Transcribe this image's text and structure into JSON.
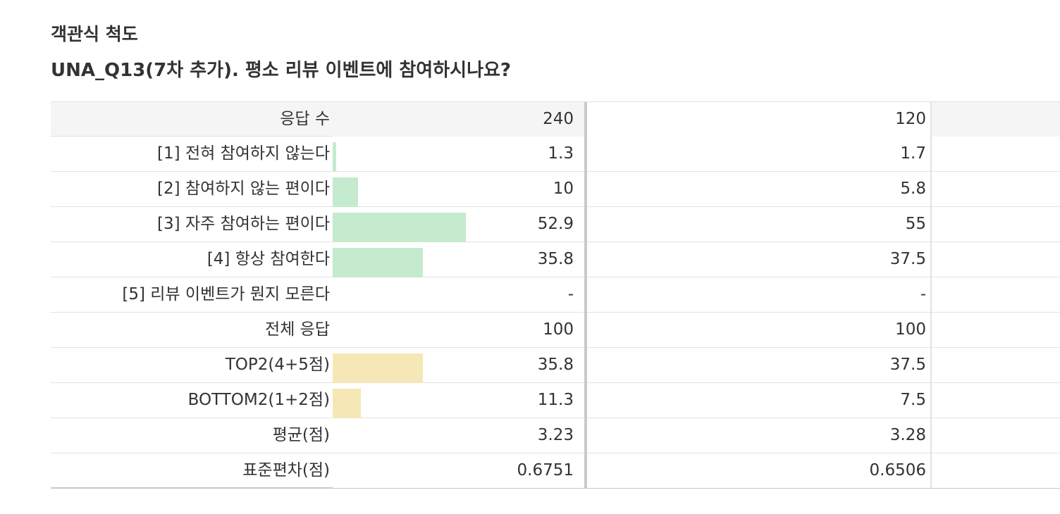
{
  "section_title": "객관식 척도",
  "question": "UNA_Q13(7차 추가). 평소 리뷰 이벤트에 참여하시나요?",
  "header": {
    "label": "응답 수",
    "v1": "240",
    "v2": "120"
  },
  "rows": [
    {
      "label": "[1] 전혀 참여하지 않는다",
      "v1": "1.3",
      "v2": "1.7",
      "bar": 1.3,
      "color": "green"
    },
    {
      "label": "[2] 참여하지 않는 편이다",
      "v1": "10",
      "v2": "5.8",
      "bar": 10,
      "color": "green"
    },
    {
      "label": "[3] 자주 참여하는 편이다",
      "v1": "52.9",
      "v2": "55",
      "bar": 52.9,
      "color": "green"
    },
    {
      "label": "[4] 항상 참여한다",
      "v1": "35.8",
      "v2": "37.5",
      "bar": 35.8,
      "color": "green"
    },
    {
      "label": "[5] 리뷰 이벤트가 뭔지 모른다",
      "v1": "-",
      "v2": "-",
      "bar": 0,
      "color": "green"
    },
    {
      "label": "전체 응답",
      "v1": "100",
      "v2": "100",
      "bar": 0,
      "color": "none"
    },
    {
      "label": "TOP2(4+5점)",
      "v1": "35.8",
      "v2": "37.5",
      "bar": 35.8,
      "color": "yellow"
    },
    {
      "label": "BOTTOM2(1+2점)",
      "v1": "11.3",
      "v2": "7.5",
      "bar": 11.3,
      "color": "yellow"
    },
    {
      "label": "평균(점)",
      "v1": "3.23",
      "v2": "3.28",
      "bar": 0,
      "color": "none"
    },
    {
      "label": "표준편차(점)",
      "v1": "0.6751",
      "v2": "0.6506",
      "bar": 0,
      "color": "none"
    }
  ],
  "colors": {
    "green_bar": "#c4ebcd",
    "yellow_bar": "#f5e7b6",
    "header_bg": "#f5f5f5"
  }
}
